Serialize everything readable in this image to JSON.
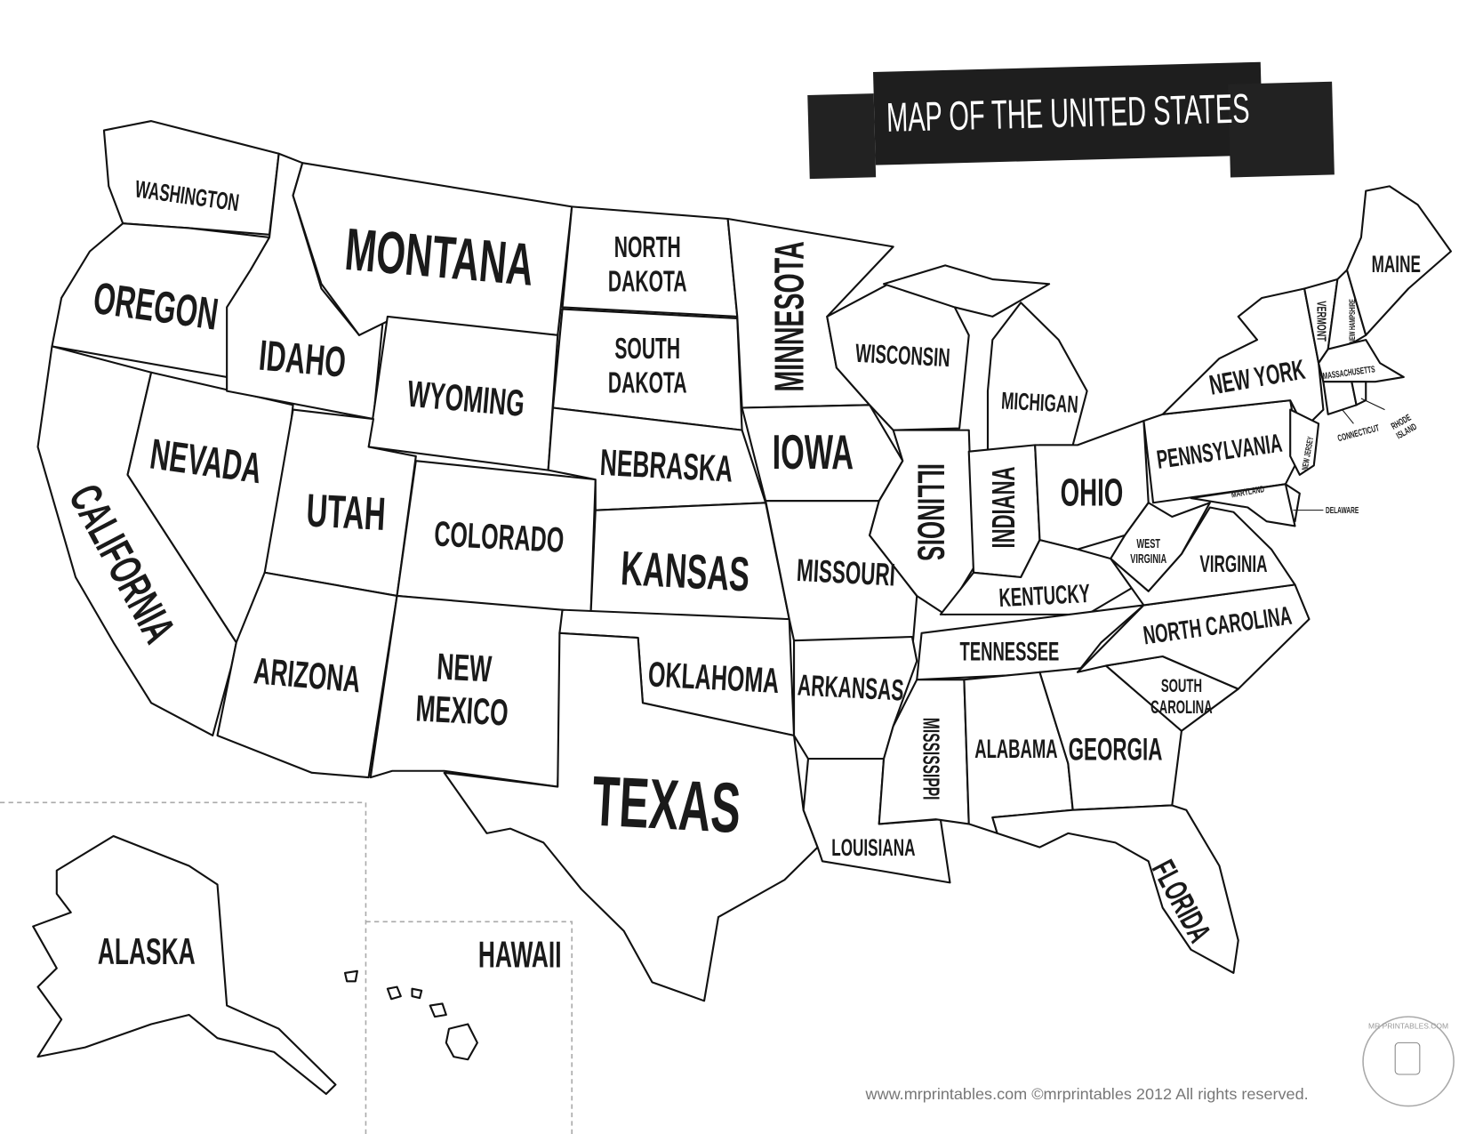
{
  "header": {
    "title": "MAP OF THE UNITED STATES"
  },
  "states": [
    [
      "WASHINGTON"
    ],
    [
      "OREGON"
    ],
    [
      "CALIFORNIA"
    ],
    [
      "NEVADA"
    ],
    [
      "IDAHO"
    ],
    [
      "MONTANA"
    ],
    [
      "WYOMING"
    ],
    [
      "UTAH"
    ],
    [
      "COLORADO"
    ],
    [
      "ARIZONA"
    ],
    [
      "NEW",
      "MEXICO"
    ],
    [
      "NORTH",
      "DAKOTA"
    ],
    [
      "SOUTH",
      "DAKOTA"
    ],
    [
      "NEBRASKA"
    ],
    [
      "KANSAS"
    ],
    [
      "OKLAHOMA"
    ],
    [
      "TEXAS"
    ],
    [
      "MINNESOTA"
    ],
    [
      "IOWA"
    ],
    [
      "MISSOURI"
    ],
    [
      "ARKANSAS"
    ],
    [
      "LOUISIANA"
    ],
    [
      "WISCONSIN"
    ],
    [
      "ILLINOIS"
    ],
    [
      "MICHIGAN"
    ],
    [
      "INDIANA"
    ],
    [
      "OHIO"
    ],
    [
      "KENTUCKY"
    ],
    [
      "TENNESSEE"
    ],
    [
      "MISSISSIPPI"
    ],
    [
      "ALABAMA"
    ],
    [
      "GEORGIA"
    ],
    [
      "FLORIDA"
    ],
    [
      "SOUTH",
      "CAROLINA"
    ],
    [
      "NORTH CAROLINA"
    ],
    [
      "VIRGINIA"
    ],
    [
      "WEST",
      "VIRGINIA"
    ],
    [
      "PENNSYLVANIA"
    ],
    [
      "NEW YORK"
    ],
    [
      "VERMONT"
    ],
    [
      "NEW HAMPSHIRE"
    ],
    [
      "MAINE"
    ],
    [
      "MASSACHUSETTS"
    ],
    [
      "CONNECTICUT"
    ],
    [
      "RHODE",
      "ISLAND"
    ],
    [
      "NEW JERSEY"
    ],
    [
      "MARYLAND"
    ],
    [
      "DELAWARE"
    ],
    [
      "ALASKA"
    ],
    [
      "HAWAII"
    ]
  ],
  "footer": {
    "text": "www.mrprintables.com  ©mrprintables  2012   All rights reserved.",
    "logo": "MR PRINTABLES.COM"
  }
}
